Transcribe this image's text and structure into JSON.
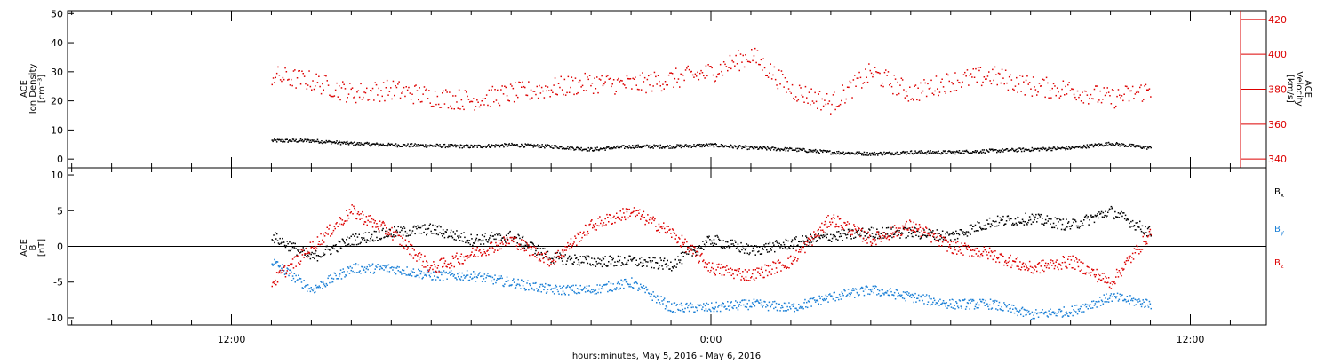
{
  "chart_data": [
    {
      "type": "scatter",
      "panel": "top",
      "ylabel_left": [
        "ACE",
        "Ion Density",
        "[cm⁻³]"
      ],
      "ylabel_right": [
        "ACE",
        "Velocity",
        "[km/s]"
      ],
      "left_axis": {
        "ylim": [
          -3,
          51
        ],
        "ticks": [
          "0",
          "10",
          "20",
          "30",
          "40",
          "50"
        ]
      },
      "right_axis": {
        "ylim": [
          335,
          425
        ],
        "ticks": [
          "340",
          "360",
          "380",
          "400",
          "420"
        ],
        "color": "#dd0000"
      },
      "series": [
        {
          "label": "density",
          "axis": "left",
          "color": "#000000",
          "x": [
            -11,
            -10,
            -9,
            -8,
            -7,
            -6,
            -5,
            -4,
            -3,
            -2,
            -1,
            0,
            1,
            2,
            3,
            4,
            5,
            6,
            7,
            8,
            9,
            10,
            11
          ],
          "y": [
            6.5,
            6.5,
            5.5,
            5,
            4.8,
            4.5,
            5,
            4.5,
            3.5,
            4.5,
            4.5,
            5,
            4,
            3.5,
            2.5,
            2,
            2.5,
            2.5,
            3,
            3.5,
            4,
            5.5,
            4
          ]
        },
        {
          "label": "velocity",
          "axis": "right",
          "color": "#dd0000",
          "x": [
            -11,
            -10,
            -9,
            -8,
            -7,
            -6,
            -5,
            -4,
            -3,
            -2,
            -1,
            0,
            1,
            2,
            3,
            4,
            5,
            6,
            7,
            8,
            9,
            10,
            11
          ],
          "y": [
            388,
            385,
            378,
            380,
            376,
            374,
            378,
            381,
            384,
            383,
            386,
            390,
            400,
            380,
            372,
            390,
            378,
            385,
            388,
            382,
            380,
            375,
            380
          ]
        }
      ]
    },
    {
      "type": "scatter",
      "panel": "bottom",
      "ylabel_left": [
        "ACE",
        "B",
        "[nT]"
      ],
      "ylim": [
        -11,
        11
      ],
      "yticks": [
        "-10",
        "-5",
        "0",
        "5",
        "10"
      ],
      "x_ticks": [
        "12:00",
        "0:00",
        "12:00"
      ],
      "xlabel": "hours:minutes, May  5, 2016 - May  6, 2016",
      "legend": [
        {
          "text": "B",
          "sub": "x",
          "color": "#000000"
        },
        {
          "text": "B",
          "sub": "y",
          "color": "#1a7fd6"
        },
        {
          "text": "B",
          "sub": "z",
          "color": "#dd0000"
        }
      ],
      "series": [
        {
          "label": "Bx",
          "color": "#000000",
          "x": [
            -11,
            -10,
            -9,
            -8,
            -7,
            -6,
            -5,
            -4,
            -3,
            -2,
            -1,
            0,
            1,
            2,
            3,
            4,
            5,
            6,
            7,
            8,
            9,
            10,
            11
          ],
          "y": [
            1.5,
            -1.5,
            1,
            2,
            2.5,
            1,
            1.5,
            -1.5,
            -2,
            -2,
            -2.5,
            1,
            -0.5,
            0.5,
            1.5,
            2,
            2,
            1.5,
            3.5,
            4,
            3,
            5,
            2
          ]
        },
        {
          "label": "By",
          "color": "#1a7fd6",
          "x": [
            -11,
            -10,
            -9,
            -8,
            -7,
            -6,
            -5,
            -4,
            -3,
            -2,
            -1,
            0,
            1,
            2,
            3,
            4,
            5,
            6,
            7,
            8,
            9,
            10,
            11
          ],
          "y": [
            -2,
            -6,
            -3,
            -3,
            -4,
            -4,
            -5,
            -6,
            -6,
            -5,
            -8.5,
            -8.5,
            -8,
            -8.5,
            -7,
            -6,
            -7,
            -8,
            -8,
            -9.5,
            -9,
            -7,
            -8
          ]
        },
        {
          "label": "Bz",
          "color": "#dd0000",
          "x": [
            -11,
            -10,
            -9,
            -8,
            -7,
            -6,
            -5,
            -4,
            -3,
            -2,
            -1,
            0,
            1,
            2,
            3,
            4,
            5,
            6,
            7,
            8,
            9,
            10,
            11
          ],
          "y": [
            -5,
            0,
            5,
            2,
            -3,
            -1,
            1,
            -2,
            3,
            5,
            2,
            -3,
            -4,
            -2,
            4,
            1,
            3,
            0,
            -1,
            -3,
            -2,
            -5,
            2
          ]
        }
      ]
    }
  ]
}
